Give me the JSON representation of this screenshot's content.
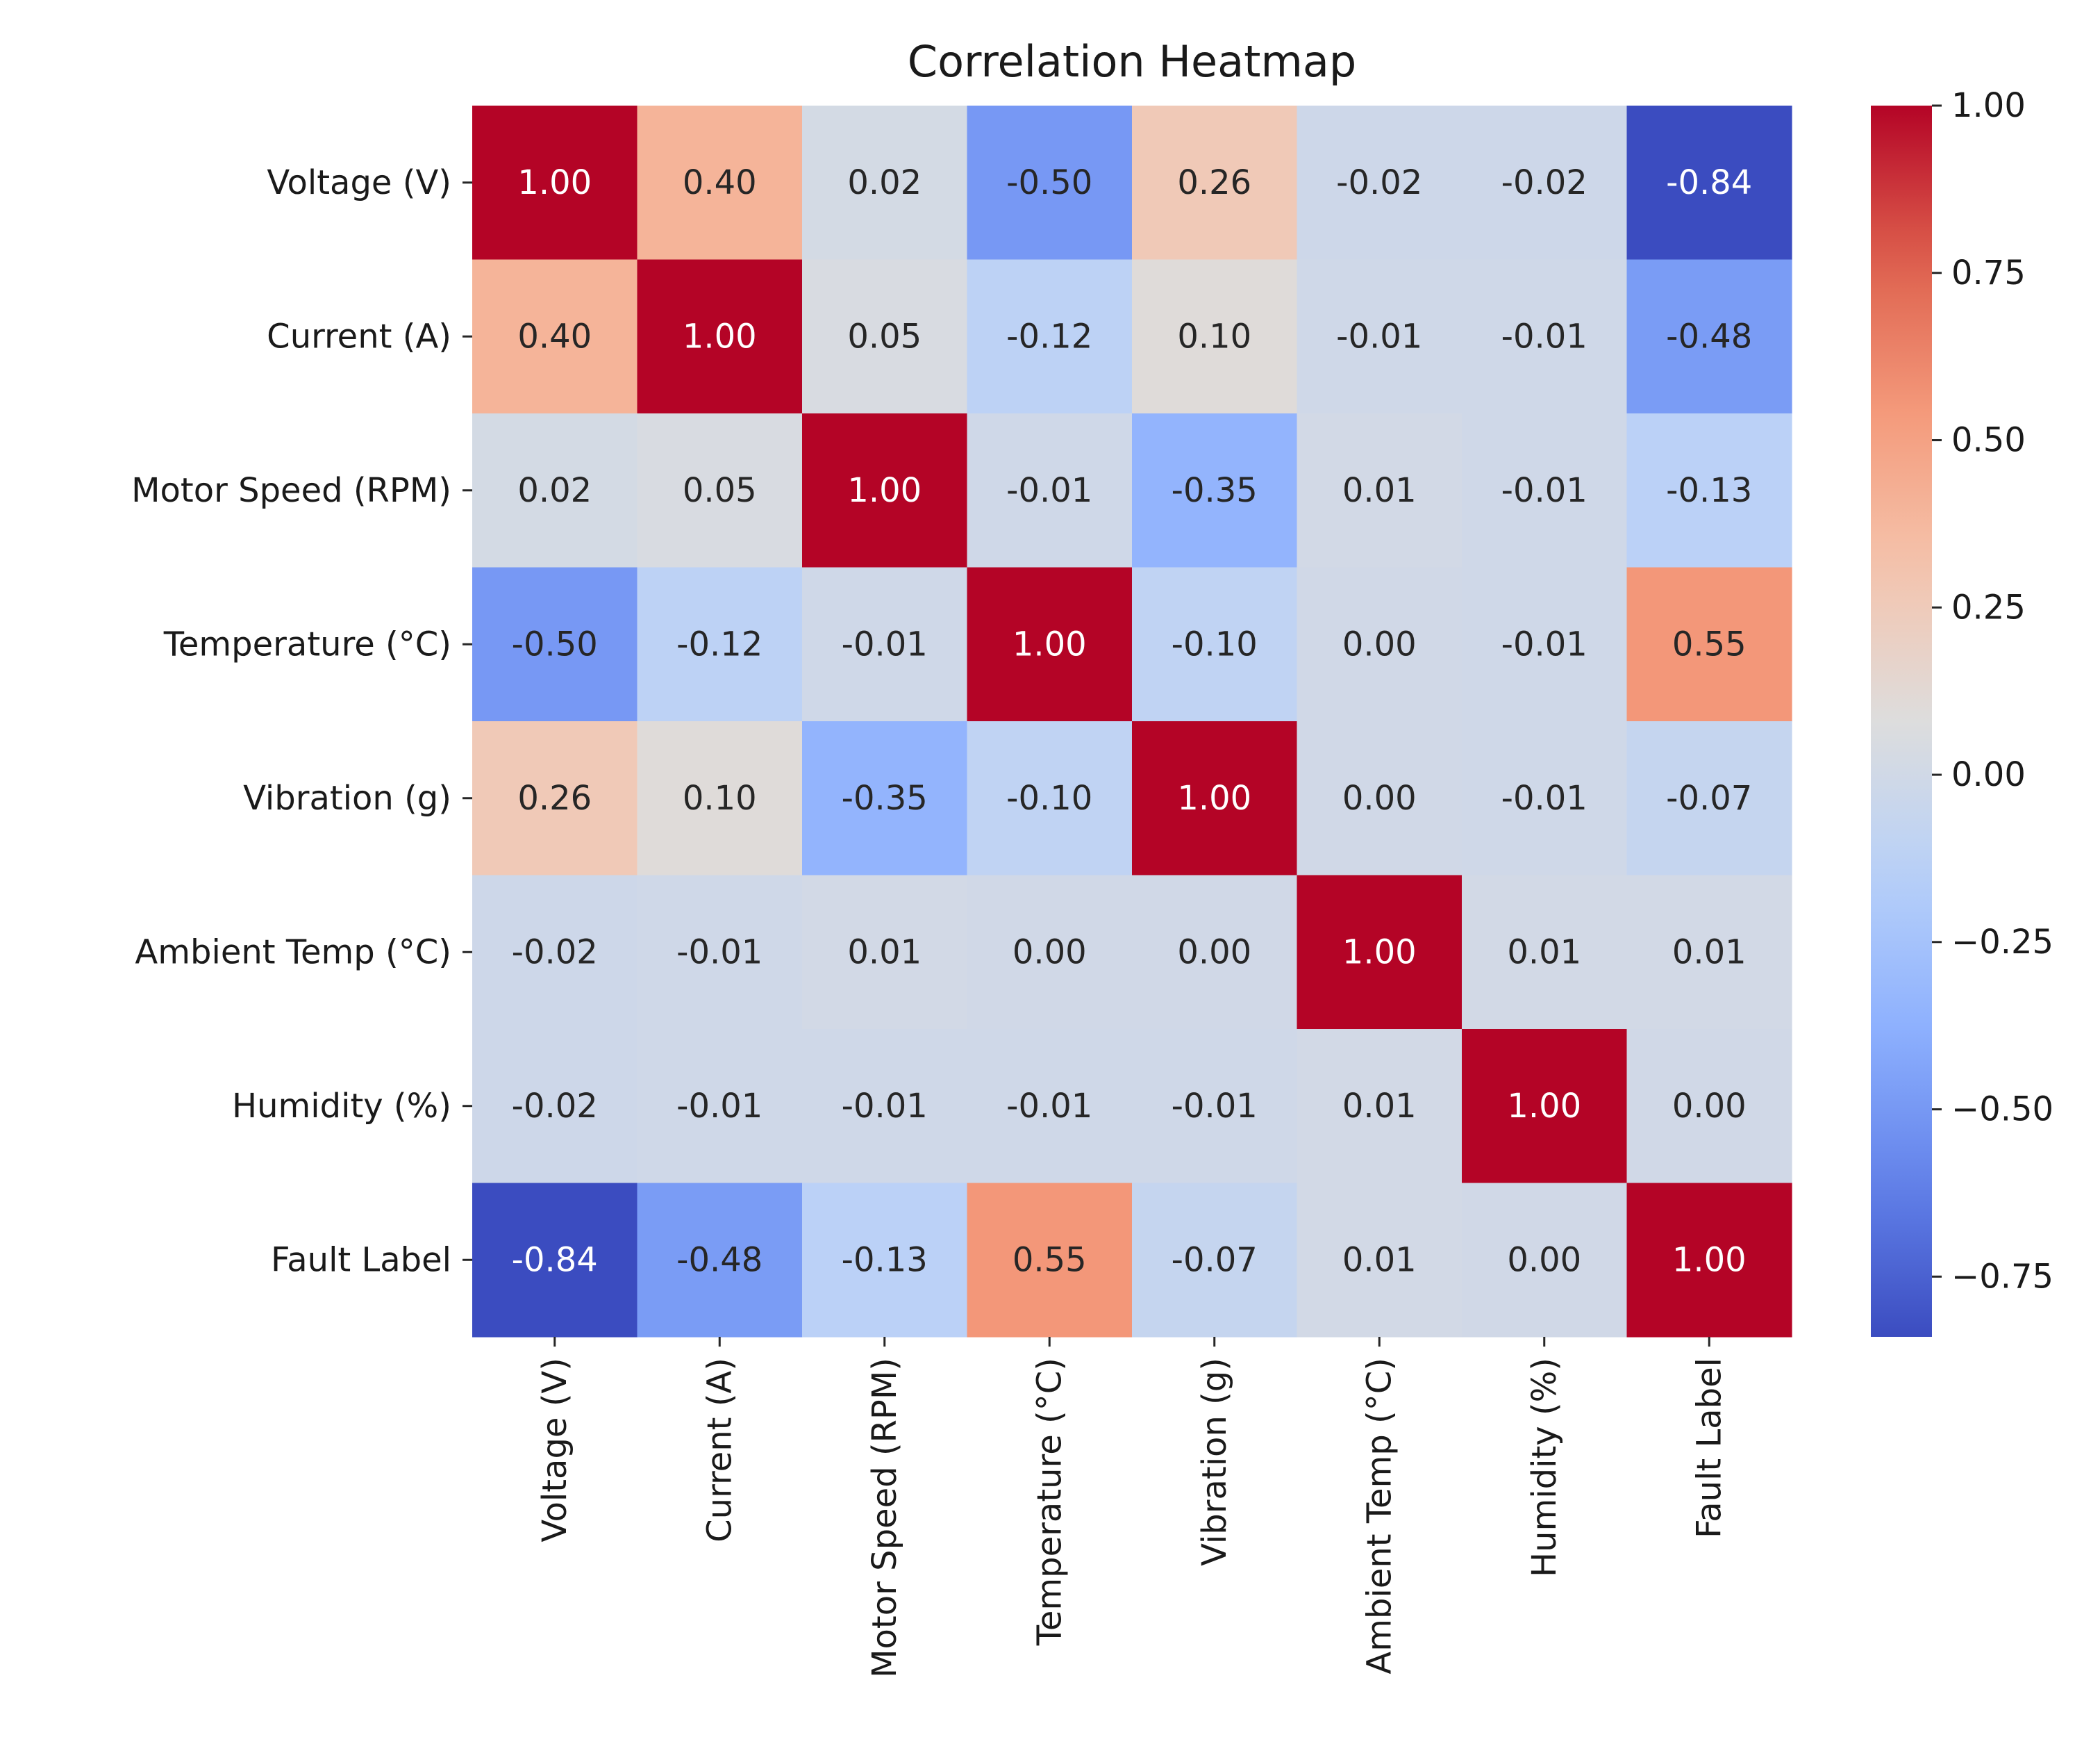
{
  "chart_data": {
    "type": "heatmap",
    "title": "Correlation Heatmap",
    "xlabel": "",
    "ylabel": "",
    "row_labels": [
      "Voltage (V)",
      "Current (A)",
      "Motor Speed (RPM)",
      "Temperature (°C)",
      "Vibration (g)",
      "Ambient Temp (°C)",
      "Humidity (%)",
      "Fault Label"
    ],
    "col_labels": [
      "Voltage (V)",
      "Current (A)",
      "Motor Speed (RPM)",
      "Temperature (°C)",
      "Vibration (g)",
      "Ambient Temp (°C)",
      "Humidity (%)",
      "Fault Label"
    ],
    "values": [
      [
        1.0,
        0.4,
        0.02,
        -0.5,
        0.26,
        -0.02,
        -0.02,
        -0.84
      ],
      [
        0.4,
        1.0,
        0.05,
        -0.12,
        0.1,
        -0.01,
        -0.01,
        -0.48
      ],
      [
        0.02,
        0.05,
        1.0,
        -0.01,
        -0.35,
        0.01,
        -0.01,
        -0.13
      ],
      [
        -0.5,
        -0.12,
        -0.01,
        1.0,
        -0.1,
        0.0,
        -0.01,
        0.55
      ],
      [
        0.26,
        0.1,
        -0.35,
        -0.1,
        1.0,
        0.0,
        -0.01,
        -0.07
      ],
      [
        -0.02,
        -0.01,
        0.01,
        0.0,
        0.0,
        1.0,
        0.01,
        0.01
      ],
      [
        -0.02,
        -0.01,
        -0.01,
        -0.01,
        -0.01,
        0.01,
        1.0,
        0.0
      ],
      [
        -0.84,
        -0.48,
        -0.13,
        0.55,
        -0.07,
        0.01,
        0.0,
        1.0
      ]
    ],
    "value_format": "2dp",
    "colormap": "coolwarm",
    "vmin": -0.84,
    "vmax": 1.0,
    "colorbar_ticks": [
      1.0,
      0.75,
      0.5,
      0.25,
      0.0,
      -0.25,
      -0.5,
      -0.75
    ],
    "colorbar_tick_labels": [
      "1.00",
      "0.75",
      "0.50",
      "0.25",
      "0.00",
      "−0.25",
      "−0.50",
      "−0.75"
    ],
    "colorbar_position": "right"
  }
}
